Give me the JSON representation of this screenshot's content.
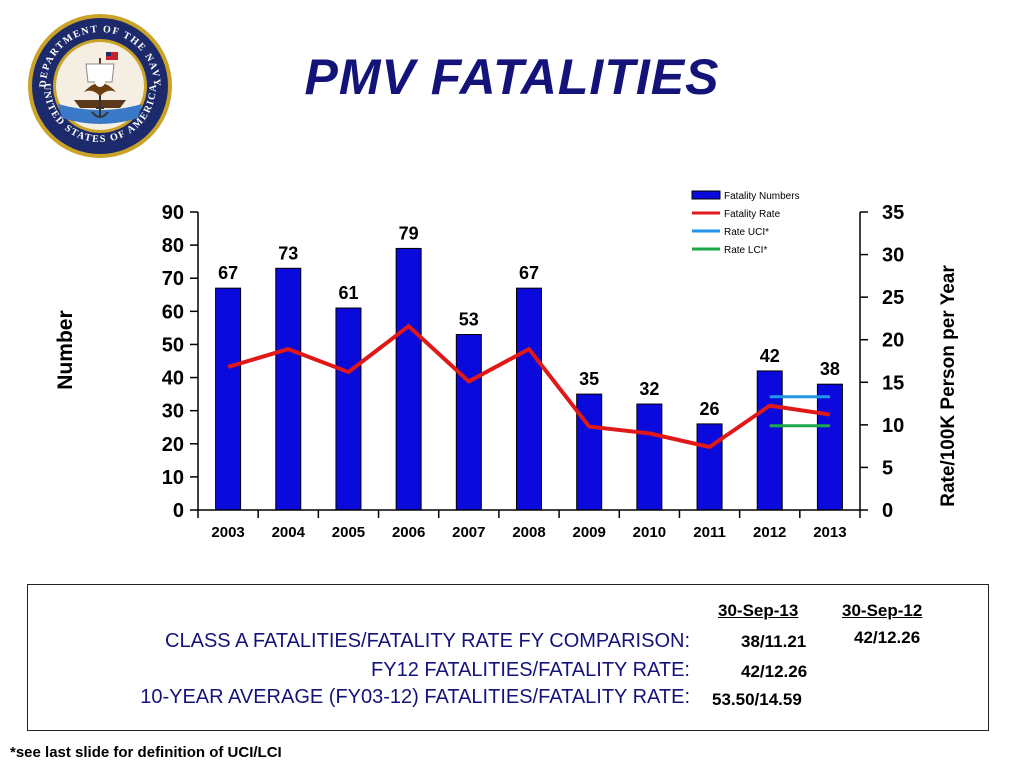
{
  "page_title": "PMV  FATALITIES",
  "footnote": "*see last slide for definition of UCI/LCI",
  "colors": {
    "title": "#14137a",
    "bar": "#0a0adc",
    "fatality_rate": "#e01818",
    "rate_uci": "#2196e8",
    "rate_lci": "#1aa84a"
  },
  "chart_data": {
    "type": "bar",
    "title": "",
    "xlabel": "",
    "ylabel": "Number",
    "y2label": "Rate/100K Person per Year",
    "categories": [
      "2003",
      "2004",
      "2005",
      "2006",
      "2007",
      "2008",
      "2009",
      "2010",
      "2011",
      "2012",
      "2013"
    ],
    "ylim": [
      0,
      90
    ],
    "yticks": [
      "0",
      "10",
      "20",
      "30",
      "40",
      "50",
      "60",
      "70",
      "80",
      "90"
    ],
    "y2lim": [
      0,
      35
    ],
    "y2ticks": [
      "0",
      "5",
      "10",
      "15",
      "20",
      "25",
      "30",
      "35"
    ],
    "legend_position": "top-right",
    "grid": false,
    "series": [
      {
        "name": "Fatality Numbers",
        "type": "bar",
        "axis": "left",
        "values": [
          67,
          73,
          61,
          79,
          53,
          67,
          35,
          32,
          26,
          42,
          38
        ],
        "labels": [
          "67",
          "73",
          "61",
          "79",
          "53",
          "67",
          "35",
          "32",
          "26",
          "42",
          "38"
        ]
      },
      {
        "name": "Fatality Rate",
        "type": "line",
        "axis": "right",
        "values": [
          16.8,
          18.9,
          16.2,
          21.6,
          15.1,
          18.9,
          9.8,
          9.0,
          7.4,
          12.26,
          11.21
        ]
      },
      {
        "name": "Rate UCI*",
        "type": "line",
        "axis": "right",
        "points": [
          [
            "2012",
            13.3
          ],
          [
            "2013",
            13.3
          ]
        ]
      },
      {
        "name": "Rate LCI*",
        "type": "line",
        "axis": "right",
        "points": [
          [
            "2012",
            9.9
          ],
          [
            "2013",
            9.9
          ]
        ]
      }
    ]
  },
  "comparison": {
    "col1_header": "30-Sep-13",
    "col2_header": "30-Sep-12",
    "rows": [
      {
        "label": "CLASS A FATALITIES/FATALITY RATE FY COMPARISON:",
        "col1": "38/11.21",
        "col2": "42/12.26"
      },
      {
        "label": "FY12 FATALITIES/FATALITY RATE:",
        "col1": "42/12.26",
        "col2": ""
      },
      {
        "label": "10-YEAR AVERAGE (FY03-12) FATALITIES/FATALITY RATE:",
        "col1": "53.50/14.59",
        "col2": ""
      }
    ]
  }
}
